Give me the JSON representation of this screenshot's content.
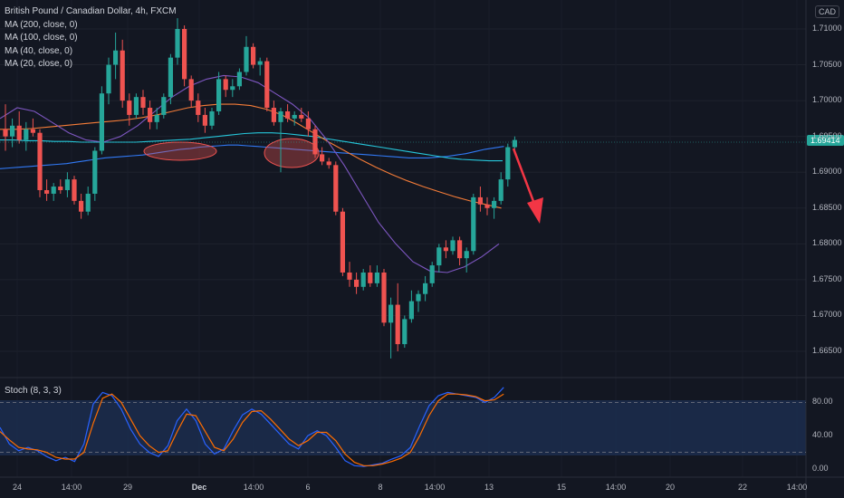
{
  "legend": {
    "title": "British Pound / Canadian Dollar, 4h, FXCM",
    "ma_lines": [
      "MA (200, close, 0)",
      "MA (100, close, 0)",
      "MA (40, close, 0)",
      "MA (20, close, 0)"
    ]
  },
  "currency": "CAD",
  "last_price": "1.69414",
  "stoch_label": "Stoch (8, 3, 3)",
  "colors": {
    "background": "#131722",
    "up": "#26a69a",
    "down": "#ef5350",
    "ma200": "#3179f5",
    "ma100": "#26c6da",
    "ma40": "#f57c38",
    "ma20": "#7e57c2",
    "stoch_k": "#2962ff",
    "stoch_d": "#ff6d00",
    "arrow": "#f23645"
  },
  "chart_data": {
    "type": "candlestick",
    "y_ticks": [
      "1.71000",
      "1.70500",
      "1.70000",
      "1.69500",
      "1.69000",
      "1.68500",
      "1.68000",
      "1.67500",
      "1.67000",
      "1.66500"
    ],
    "ylim": [
      1.662,
      1.714
    ],
    "x_ticks": [
      "24",
      "14:00",
      "29",
      "Dec",
      "14:00",
      "6",
      "8",
      "14:00",
      "13",
      "15",
      "14:00",
      "20",
      "22",
      "14:00"
    ],
    "candles": [
      [
        1.696,
        1.6995,
        1.693,
        1.695
      ],
      [
        1.695,
        1.6975,
        1.6935,
        1.6965
      ],
      [
        1.6965,
        1.6985,
        1.694,
        1.6945
      ],
      [
        1.6945,
        1.697,
        1.693,
        1.696
      ],
      [
        1.696,
        1.6975,
        1.695,
        1.6955
      ],
      [
        1.6955,
        1.696,
        1.6865,
        1.6875
      ],
      [
        1.6875,
        1.689,
        1.686,
        1.687
      ],
      [
        1.687,
        1.6885,
        1.686,
        1.688
      ],
      [
        1.688,
        1.689,
        1.687,
        1.6875
      ],
      [
        1.6875,
        1.69,
        1.6865,
        1.689
      ],
      [
        1.689,
        1.6895,
        1.6855,
        1.686
      ],
      [
        1.686,
        1.687,
        1.6835,
        1.6845
      ],
      [
        1.6845,
        1.688,
        1.684,
        1.687
      ],
      [
        1.687,
        1.6935,
        1.686,
        1.693
      ],
      [
        1.693,
        1.702,
        1.6925,
        1.701
      ],
      [
        1.701,
        1.706,
        1.6995,
        1.705
      ],
      [
        1.705,
        1.7095,
        1.703,
        1.707
      ],
      [
        1.707,
        1.7085,
        1.699,
        1.7
      ],
      [
        1.7,
        1.701,
        1.6965,
        1.698
      ],
      [
        1.698,
        1.701,
        1.6975,
        1.7005
      ],
      [
        1.7005,
        1.7015,
        1.698,
        1.699
      ],
      [
        1.699,
        1.7,
        1.696,
        1.697
      ],
      [
        1.697,
        1.699,
        1.696,
        1.698
      ],
      [
        1.698,
        1.701,
        1.6975,
        1.7005
      ],
      [
        1.7005,
        1.7065,
        1.6995,
        1.706
      ],
      [
        1.706,
        1.7115,
        1.705,
        1.71
      ],
      [
        1.71,
        1.7105,
        1.702,
        1.703
      ],
      [
        1.703,
        1.7035,
        1.699,
        1.7
      ],
      [
        1.7,
        1.701,
        1.697,
        1.698
      ],
      [
        1.698,
        1.699,
        1.6955,
        1.6965
      ],
      [
        1.6965,
        1.699,
        1.696,
        1.6985
      ],
      [
        1.6985,
        1.704,
        1.698,
        1.703
      ],
      [
        1.703,
        1.7035,
        1.7005,
        1.7015
      ],
      [
        1.7015,
        1.703,
        1.7005,
        1.702
      ],
      [
        1.702,
        1.7045,
        1.7015,
        1.704
      ],
      [
        1.704,
        1.709,
        1.7035,
        1.7075
      ],
      [
        1.7075,
        1.708,
        1.7045,
        1.705
      ],
      [
        1.705,
        1.706,
        1.7035,
        1.7055
      ],
      [
        1.7055,
        1.706,
        1.6985,
        1.699
      ],
      [
        1.699,
        1.7,
        1.6965,
        1.697
      ],
      [
        1.697,
        1.699,
        1.69,
        1.6985
      ],
      [
        1.6985,
        1.6995,
        1.697,
        1.6975
      ],
      [
        1.6975,
        1.6985,
        1.6965,
        1.698
      ],
      [
        1.698,
        1.699,
        1.697,
        1.6975
      ],
      [
        1.6975,
        1.6985,
        1.695,
        1.696
      ],
      [
        1.696,
        1.6965,
        1.692,
        1.6925
      ],
      [
        1.6925,
        1.6935,
        1.691,
        1.6915
      ],
      [
        1.6915,
        1.692,
        1.6905,
        1.691
      ],
      [
        1.691,
        1.6915,
        1.684,
        1.6845
      ],
      [
        1.6845,
        1.685,
        1.6755,
        1.676
      ],
      [
        1.676,
        1.6775,
        1.674,
        1.675
      ],
      [
        1.675,
        1.676,
        1.673,
        1.674
      ],
      [
        1.674,
        1.6765,
        1.6735,
        1.676
      ],
      [
        1.676,
        1.677,
        1.674,
        1.6745
      ],
      [
        1.6745,
        1.677,
        1.674,
        1.676
      ],
      [
        1.676,
        1.6765,
        1.6685,
        1.669
      ],
      [
        1.669,
        1.6725,
        1.664,
        1.6715
      ],
      [
        1.6715,
        1.6745,
        1.665,
        1.666
      ],
      [
        1.666,
        1.67,
        1.6655,
        1.6695
      ],
      [
        1.6695,
        1.6735,
        1.669,
        1.672
      ],
      [
        1.672,
        1.6735,
        1.6705,
        1.673
      ],
      [
        1.673,
        1.6755,
        1.672,
        1.6745
      ],
      [
        1.6745,
        1.6775,
        1.674,
        1.677
      ],
      [
        1.677,
        1.68,
        1.676,
        1.6795
      ],
      [
        1.6795,
        1.6805,
        1.678,
        1.679
      ],
      [
        1.679,
        1.681,
        1.6785,
        1.6805
      ],
      [
        1.6805,
        1.681,
        1.677,
        1.678
      ],
      [
        1.678,
        1.6795,
        1.676,
        1.679
      ],
      [
        1.679,
        1.687,
        1.6785,
        1.6865
      ],
      [
        1.6865,
        1.688,
        1.6845,
        1.6855
      ],
      [
        1.6855,
        1.6865,
        1.684,
        1.685
      ],
      [
        1.685,
        1.6865,
        1.6835,
        1.686
      ],
      [
        1.686,
        1.69,
        1.6855,
        1.689
      ],
      [
        1.689,
        1.694,
        1.688,
        1.6935
      ],
      [
        1.6935,
        1.695,
        1.6925,
        1.6945
      ]
    ],
    "ma_series": [
      {
        "name": "MA (200, close, 0)",
        "values": [
          1.6905,
          1.6906,
          1.6907,
          1.6908,
          1.6909,
          1.691,
          1.6911,
          1.6912,
          1.6914,
          1.6916,
          1.6918,
          1.692,
          1.6921,
          1.6922,
          1.6923,
          1.6924,
          1.6926,
          1.6928,
          1.693,
          1.6932,
          1.6933,
          1.6935,
          1.6936,
          1.6937,
          1.6938,
          1.6938,
          1.6937,
          1.6936,
          1.6935,
          1.6934,
          1.6933,
          1.6932,
          1.6931,
          1.693,
          1.6929,
          1.6928,
          1.6927,
          1.6926,
          1.6925,
          1.6924,
          1.6923,
          1.6922,
          1.6921,
          1.692,
          1.692,
          1.692,
          1.6921,
          1.6922,
          1.6924,
          1.6926,
          1.6929,
          1.6932,
          1.6934,
          1.6936
        ]
      },
      {
        "name": "MA (100, close, 0)",
        "values": [
          1.6945,
          1.6945,
          1.6944,
          1.6944,
          1.6943,
          1.6943,
          1.6942,
          1.6942,
          1.6942,
          1.6942,
          1.6942,
          1.6943,
          1.6944,
          1.6945,
          1.6946,
          1.6948,
          1.695,
          1.6952,
          1.6954,
          1.6955,
          1.6955,
          1.6954,
          1.6952,
          1.695,
          1.6947,
          1.6944,
          1.6941,
          1.6938,
          1.6935,
          1.6932,
          1.6929,
          1.6926,
          1.6923,
          1.692,
          1.6918,
          1.6917,
          1.6916,
          1.6916
        ]
      },
      {
        "name": "MA (40, close, 0)",
        "values": [
          1.696,
          1.696,
          1.6961,
          1.6963,
          1.6965,
          1.6967,
          1.6969,
          1.6971,
          1.6973,
          1.6976,
          1.698,
          1.6985,
          1.699,
          1.6993,
          1.6995,
          1.6995,
          1.6993,
          1.6988,
          1.698,
          1.6968,
          1.6955,
          1.6942,
          1.693,
          1.6918,
          1.6907,
          1.6897,
          1.6888,
          1.688,
          1.6873,
          1.6866,
          1.686,
          1.6855,
          1.685
        ]
      },
      {
        "name": "MA (20, close, 0)",
        "values": [
          1.6975,
          1.699,
          1.6985,
          1.697,
          1.6955,
          1.6945,
          1.6942,
          1.695,
          1.6965,
          1.6985,
          1.7005,
          1.702,
          1.703,
          1.7035,
          1.7033,
          1.7025,
          1.701,
          1.6995,
          1.6975,
          1.6945,
          1.691,
          1.687,
          1.683,
          1.68,
          1.6775,
          1.6762,
          1.676,
          1.6768,
          1.6782,
          1.68
        ]
      }
    ],
    "stoch_ticks": [
      "80.00",
      "40.00",
      "0.00"
    ],
    "stoch_levels": [
      80,
      20
    ],
    "stoch_k": [
      50,
      30,
      22,
      26,
      22,
      15,
      10,
      14,
      9,
      30,
      78,
      92,
      88,
      72,
      48,
      30,
      20,
      15,
      28,
      58,
      72,
      58,
      30,
      18,
      24,
      46,
      65,
      72,
      66,
      54,
      42,
      30,
      24,
      40,
      46,
      40,
      26,
      10,
      4,
      3,
      5,
      7,
      12,
      16,
      26,
      52,
      76,
      88,
      92,
      90,
      88,
      86,
      80,
      86,
      98
    ],
    "stoch_d": [
      45,
      35,
      26,
      24,
      23,
      20,
      14,
      12,
      12,
      20,
      55,
      85,
      90,
      80,
      60,
      40,
      28,
      20,
      22,
      45,
      66,
      64,
      45,
      26,
      22,
      36,
      56,
      69,
      70,
      60,
      48,
      36,
      28,
      34,
      44,
      44,
      34,
      18,
      8,
      4,
      4,
      6,
      9,
      13,
      20,
      40,
      64,
      82,
      90,
      90,
      89,
      87,
      82,
      83,
      90
    ]
  }
}
